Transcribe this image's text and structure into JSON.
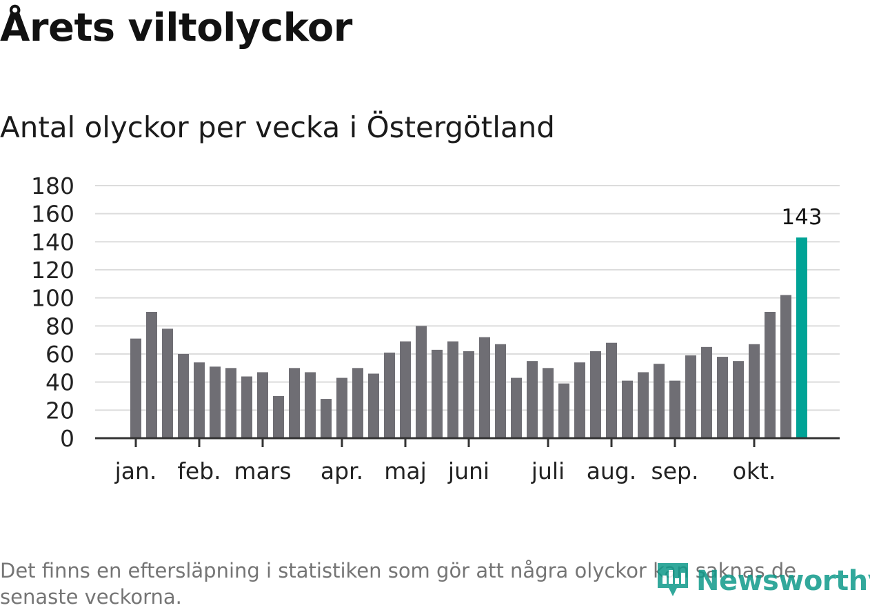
{
  "title": "Årets viltolyckor",
  "subtitle": "Antal olyckor per vecka i Östergötland",
  "footnote": "Det finns en eftersläpning i statistiken som gör att några olyckor kan saknas de senaste veckorna.",
  "brand": {
    "name": "Newsworthy",
    "icon": "newsworthy-logo-icon"
  },
  "colors": {
    "bar": "#6f6e74",
    "highlight": "#00a396",
    "grid": "#dcdcdc",
    "axis": "#333333"
  },
  "chart_data": {
    "type": "bar",
    "title": "Årets viltolyckor",
    "subtitle": "Antal olyckor per vecka i Östergötland",
    "xlabel": "",
    "ylabel": "",
    "ylim": [
      0,
      180
    ],
    "yticks": [
      0,
      20,
      40,
      60,
      80,
      100,
      120,
      140,
      160,
      180
    ],
    "values": [
      71,
      90,
      78,
      60,
      54,
      51,
      50,
      44,
      47,
      30,
      50,
      47,
      28,
      43,
      50,
      46,
      61,
      69,
      80,
      63,
      69,
      62,
      72,
      67,
      43,
      55,
      50,
      39,
      54,
      62,
      68,
      41,
      47,
      53,
      41,
      59,
      65,
      58,
      55,
      67,
      90,
      102,
      143
    ],
    "highlight_index": 42,
    "highlight_label": "143",
    "month_labels": [
      {
        "label": "jan.",
        "week_index": 0
      },
      {
        "label": "feb.",
        "week_index": 4
      },
      {
        "label": "mars",
        "week_index": 8
      },
      {
        "label": "apr.",
        "week_index": 13
      },
      {
        "label": "maj",
        "week_index": 17
      },
      {
        "label": "juni",
        "week_index": 21
      },
      {
        "label": "juli",
        "week_index": 26
      },
      {
        "label": "aug.",
        "week_index": 30
      },
      {
        "label": "sep.",
        "week_index": 34
      },
      {
        "label": "okt.",
        "week_index": 39
      }
    ],
    "grid": true
  }
}
